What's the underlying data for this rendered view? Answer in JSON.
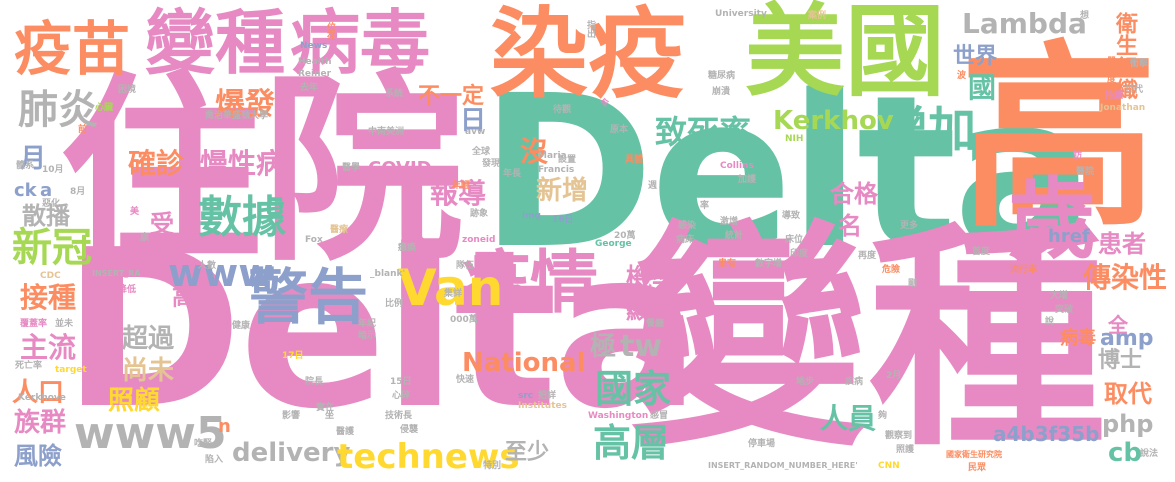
{
  "palette": {
    "pink": "#e78ac3",
    "green": "#66c2a5",
    "orange": "#fc8d62",
    "blue": "#8da0cb",
    "lime": "#a6d854",
    "yellow": "#ffd92f",
    "tan": "#e5c494",
    "gray": "#b3b3b3"
  },
  "words": [
    {
      "text": "住院",
      "color": "pink"
    },
    {
      "text": "Delta",
      "color": "green"
    },
    {
      "text": "Delta",
      "color": "pink"
    },
    {
      "text": "變種",
      "color": "pink"
    },
    {
      "text": "高",
      "color": "orange"
    },
    {
      "text": "染疫",
      "color": "orange"
    },
    {
      "text": "美國",
      "color": "lime"
    },
    {
      "text": "變種",
      "color": "pink"
    },
    {
      "text": "病毒",
      "color": "pink"
    },
    {
      "text": "疫苗",
      "color": "orange"
    },
    {
      "text": "歲",
      "color": "pink"
    },
    {
      "text": "疫情",
      "color": "pink"
    },
    {
      "text": "警告",
      "color": "blue"
    },
    {
      "text": "Van",
      "color": "yellow"
    },
    {
      "text": "數據",
      "color": "green"
    },
    {
      "text": "增加",
      "color": "green"
    },
    {
      "text": "致死率",
      "color": "green"
    },
    {
      "text": "Kerkhov",
      "color": "lime"
    },
    {
      "text": "Lambda",
      "color": "gray"
    },
    {
      "text": "衛生組織",
      "color": "orange"
    },
    {
      "text": "世界",
      "color": "blue"
    },
    {
      "text": "國",
      "color": "green"
    },
    {
      "text": "肺炎",
      "color": "gray"
    },
    {
      "text": "爆發",
      "color": "orange"
    },
    {
      "text": "不一定",
      "color": "orange"
    },
    {
      "text": "慢性病",
      "color": "pink"
    },
    {
      "text": "確診",
      "color": "orange"
    },
    {
      "text": "新冠",
      "color": "lime"
    },
    {
      "text": "www",
      "color": "blue"
    },
    {
      "text": "散播",
      "color": "gray"
    },
    {
      "text": "接種",
      "color": "orange"
    },
    {
      "text": "主流",
      "color": "pink"
    },
    {
      "text": "人口",
      "color": "orange"
    },
    {
      "text": "族群",
      "color": "pink"
    },
    {
      "text": "風險",
      "color": "blue"
    },
    {
      "text": "www5",
      "color": "gray"
    },
    {
      "text": "delivery",
      "color": "gray"
    },
    {
      "text": "technews",
      "color": "yellow"
    },
    {
      "text": "至少",
      "color": "gray"
    },
    {
      "text": "超過",
      "color": "gray"
    },
    {
      "text": "尚未",
      "color": "tan"
    },
    {
      "text": "照顧",
      "color": "yellow"
    },
    {
      "text": "National",
      "color": "orange"
    },
    {
      "text": "國家",
      "color": "green"
    },
    {
      "text": "高層",
      "color": "green"
    },
    {
      "text": "tw",
      "color": "gray"
    },
    {
      "text": "機率",
      "color": "pink"
    },
    {
      "text": "顯示",
      "color": "pink"
    },
    {
      "text": "極",
      "color": "gray"
    },
    {
      "text": "高於",
      "color": "pink"
    },
    {
      "text": "報導",
      "color": "pink"
    },
    {
      "text": "新增",
      "color": "tan"
    },
    {
      "text": "沒",
      "color": "orange"
    },
    {
      "text": "日",
      "color": "blue"
    },
    {
      "text": "月",
      "color": "blue"
    },
    {
      "text": "合格",
      "color": "pink"
    },
    {
      "text": "名",
      "color": "pink"
    },
    {
      "text": "受",
      "color": "pink"
    },
    {
      "text": "人員",
      "color": "green"
    },
    {
      "text": "傳染性",
      "color": "orange"
    },
    {
      "text": "患者",
      "color": "pink"
    },
    {
      "text": "href",
      "color": "blue"
    },
    {
      "text": "amp",
      "color": "blue"
    },
    {
      "text": "博士",
      "color": "gray"
    },
    {
      "text": "取代",
      "color": "orange"
    },
    {
      "text": "php",
      "color": "gray"
    },
    {
      "text": "cb",
      "color": "green"
    },
    {
      "text": "a4b3f35b",
      "color": "blue"
    },
    {
      "text": "全",
      "color": "pink"
    },
    {
      "text": "病毒",
      "color": "orange"
    },
    {
      "text": "COVID",
      "color": "pink"
    },
    {
      "text": "ck",
      "color": "blue"
    },
    {
      "text": "a",
      "color": "blue"
    },
    {
      "text": "n",
      "color": "orange"
    },
    {
      "text": "University",
      "color": "gray"
    },
    {
      "text": "中南美洲",
      "color": "gray"
    },
    {
      "text": "Collins",
      "color": "pink"
    },
    {
      "text": "NIH",
      "color": "lime"
    },
    {
      "text": "Jonathan",
      "color": "tan"
    },
    {
      "text": "zoneid",
      "color": "pink"
    },
    {
      "text": "George",
      "color": "green"
    },
    {
      "text": "Fox",
      "color": "gray"
    },
    {
      "text": "INSERT_RA",
      "color": "gray"
    },
    {
      "text": "_blank'",
      "color": "gray"
    },
    {
      "text": "Institutes",
      "color": "tan"
    },
    {
      "text": "Washington",
      "color": "pink"
    },
    {
      "text": "INSERT_RANDOM_NUMBER_HERE'",
      "color": "gray"
    },
    {
      "text": "CNN",
      "color": "yellow"
    },
    {
      "text": "國家衛生研究院",
      "color": "orange"
    },
    {
      "text": "Health",
      "color": "gray"
    },
    {
      "text": "News",
      "color": "blue"
    },
    {
      "text": "Kerkhove",
      "color": "gray"
    },
    {
      "text": "Maria",
      "color": "gray"
    },
    {
      "text": "Francis",
      "color": "gray"
    },
    {
      "text": "Reiner",
      "color": "gray"
    },
    {
      "text": "target",
      "color": "yellow"
    },
    {
      "text": "CDC",
      "color": "tan"
    },
    {
      "text": "img",
      "color": "blue"
    },
    {
      "text": "src",
      "color": "blue"
    },
    {
      "text": "avw",
      "color": "gray"
    },
    {
      "text": "嚴重度",
      "color": "orange"
    },
    {
      "text": "衝擊",
      "color": "gray"
    },
    {
      "text": "世代",
      "color": "gray"
    },
    {
      "text": "持續",
      "color": "pink"
    },
    {
      "text": "波",
      "color": "orange"
    },
    {
      "text": "位在",
      "color": "orange"
    },
    {
      "text": "指出",
      "color": "gray"
    },
    {
      "text": "案例",
      "color": "tan"
    },
    {
      "text": "糖尿病",
      "color": "gray"
    },
    {
      "text": "崩潰",
      "color": "gray"
    },
    {
      "text": "待觀",
      "color": "gray"
    },
    {
      "text": "系統",
      "color": "gray"
    },
    {
      "text": "困境",
      "color": "gray"
    },
    {
      "text": "心臟",
      "color": "lime"
    },
    {
      "text": "前",
      "color": "orange"
    },
    {
      "text": "喬治華盛頓大學",
      "color": "gray"
    },
    {
      "text": "去年",
      "color": "gray"
    },
    {
      "text": "原本",
      "color": "gray"
    },
    {
      "text": "全球",
      "color": "gray"
    },
    {
      "text": "發現",
      "color": "gray"
    },
    {
      "text": "年長",
      "color": "gray"
    },
    {
      "text": "設置",
      "color": "gray"
    },
    {
      "text": "具體",
      "color": "orange"
    },
    {
      "text": "加護",
      "color": "gray"
    },
    {
      "text": "訪",
      "color": "pink"
    },
    {
      "text": "醫院",
      "color": "gray"
    },
    {
      "text": "年輕",
      "color": "orange"
    },
    {
      "text": "16日",
      "color": "blue"
    },
    {
      "text": "感染",
      "color": "gray"
    },
    {
      "text": "激增",
      "color": "gray"
    },
    {
      "text": "統計",
      "color": "gray"
    },
    {
      "text": "導致",
      "color": "gray"
    },
    {
      "text": "床位",
      "color": "gray"
    },
    {
      "text": "首度",
      "color": "gray"
    },
    {
      "text": "印度",
      "color": "gray"
    },
    {
      "text": "再度",
      "color": "gray"
    },
    {
      "text": "數字增",
      "color": "gray"
    },
    {
      "text": "患有",
      "color": "orange"
    },
    {
      "text": "危險",
      "color": "orange"
    },
    {
      "text": "流行率",
      "color": "orange"
    },
    {
      "text": "大增",
      "color": "gray"
    },
    {
      "text": "突破",
      "color": "gray"
    },
    {
      "text": "說",
      "color": "gray"
    },
    {
      "text": "死亡率",
      "color": "gray"
    },
    {
      "text": "覆蓋率",
      "color": "pink"
    },
    {
      "text": "並未",
      "color": "gray"
    },
    {
      "text": "降低",
      "color": "pink"
    },
    {
      "text": "人數",
      "color": "gray"
    },
    {
      "text": "健康",
      "color": "gray"
    },
    {
      "text": "院長",
      "color": "gray"
    },
    {
      "text": "實在",
      "color": "gray"
    },
    {
      "text": "技術長",
      "color": "gray"
    },
    {
      "text": "侵襲",
      "color": "gray"
    },
    {
      "text": "快速",
      "color": "gray"
    },
    {
      "text": "心碎",
      "color": "gray"
    },
    {
      "text": "把詳",
      "color": "gray"
    },
    {
      "text": "感冒",
      "color": "gray"
    },
    {
      "text": "停車場",
      "color": "gray"
    },
    {
      "text": "觀察到",
      "color": "gray"
    },
    {
      "text": "照護",
      "color": "gray"
    },
    {
      "text": "說法",
      "color": "gray"
    },
    {
      "text": "民眾",
      "color": "orange"
    },
    {
      "text": "影響",
      "color": "gray"
    },
    {
      "text": "醫護",
      "color": "gray"
    },
    {
      "text": "陷入",
      "color": "gray"
    },
    {
      "text": "吃緊",
      "color": "gray"
    },
    {
      "text": "特別",
      "color": "gray"
    },
    {
      "text": "疾病",
      "color": "gray"
    },
    {
      "text": "地步",
      "color": "gray"
    },
    {
      "text": "2月",
      "color": "gray"
    },
    {
      "text": "15日",
      "color": "gray"
    },
    {
      "text": "17日",
      "color": "yellow"
    },
    {
      "text": "20萬",
      "color": "gray"
    },
    {
      "text": "000萬",
      "color": "gray"
    },
    {
      "text": "8月",
      "color": "gray"
    },
    {
      "text": "10月",
      "color": "gray"
    },
    {
      "text": "比例",
      "color": "gray"
    },
    {
      "text": "年紀",
      "color": "gray"
    },
    {
      "text": "暗示",
      "color": "gray"
    },
    {
      "text": "隊伍",
      "color": "gray"
    },
    {
      "text": "集詳",
      "color": "gray"
    },
    {
      "text": "手術",
      "color": "pink"
    },
    {
      "text": "餐廳",
      "color": "gray"
    },
    {
      "text": "體系",
      "color": "gray"
    },
    {
      "text": "惡化",
      "color": "gray"
    },
    {
      "text": "跡象",
      "color": "gray"
    },
    {
      "text": "醫學",
      "color": "gray"
    },
    {
      "text": "醫療",
      "color": "tan"
    },
    {
      "text": "病床",
      "color": "gray"
    },
    {
      "text": "更多",
      "color": "gray"
    },
    {
      "text": "癱瘓",
      "color": "gray"
    },
    {
      "text": "剛",
      "color": "gray"
    },
    {
      "text": "率",
      "color": "gray"
    },
    {
      "text": "夠",
      "color": "gray"
    },
    {
      "text": "週",
      "color": "gray"
    },
    {
      "text": "令",
      "color": "pink"
    },
    {
      "text": "美",
      "color": "pink"
    },
    {
      "text": "康",
      "color": "gray"
    },
    {
      "text": "坐",
      "color": "gray"
    },
    {
      "text": "想",
      "color": "gray"
    }
  ]
}
